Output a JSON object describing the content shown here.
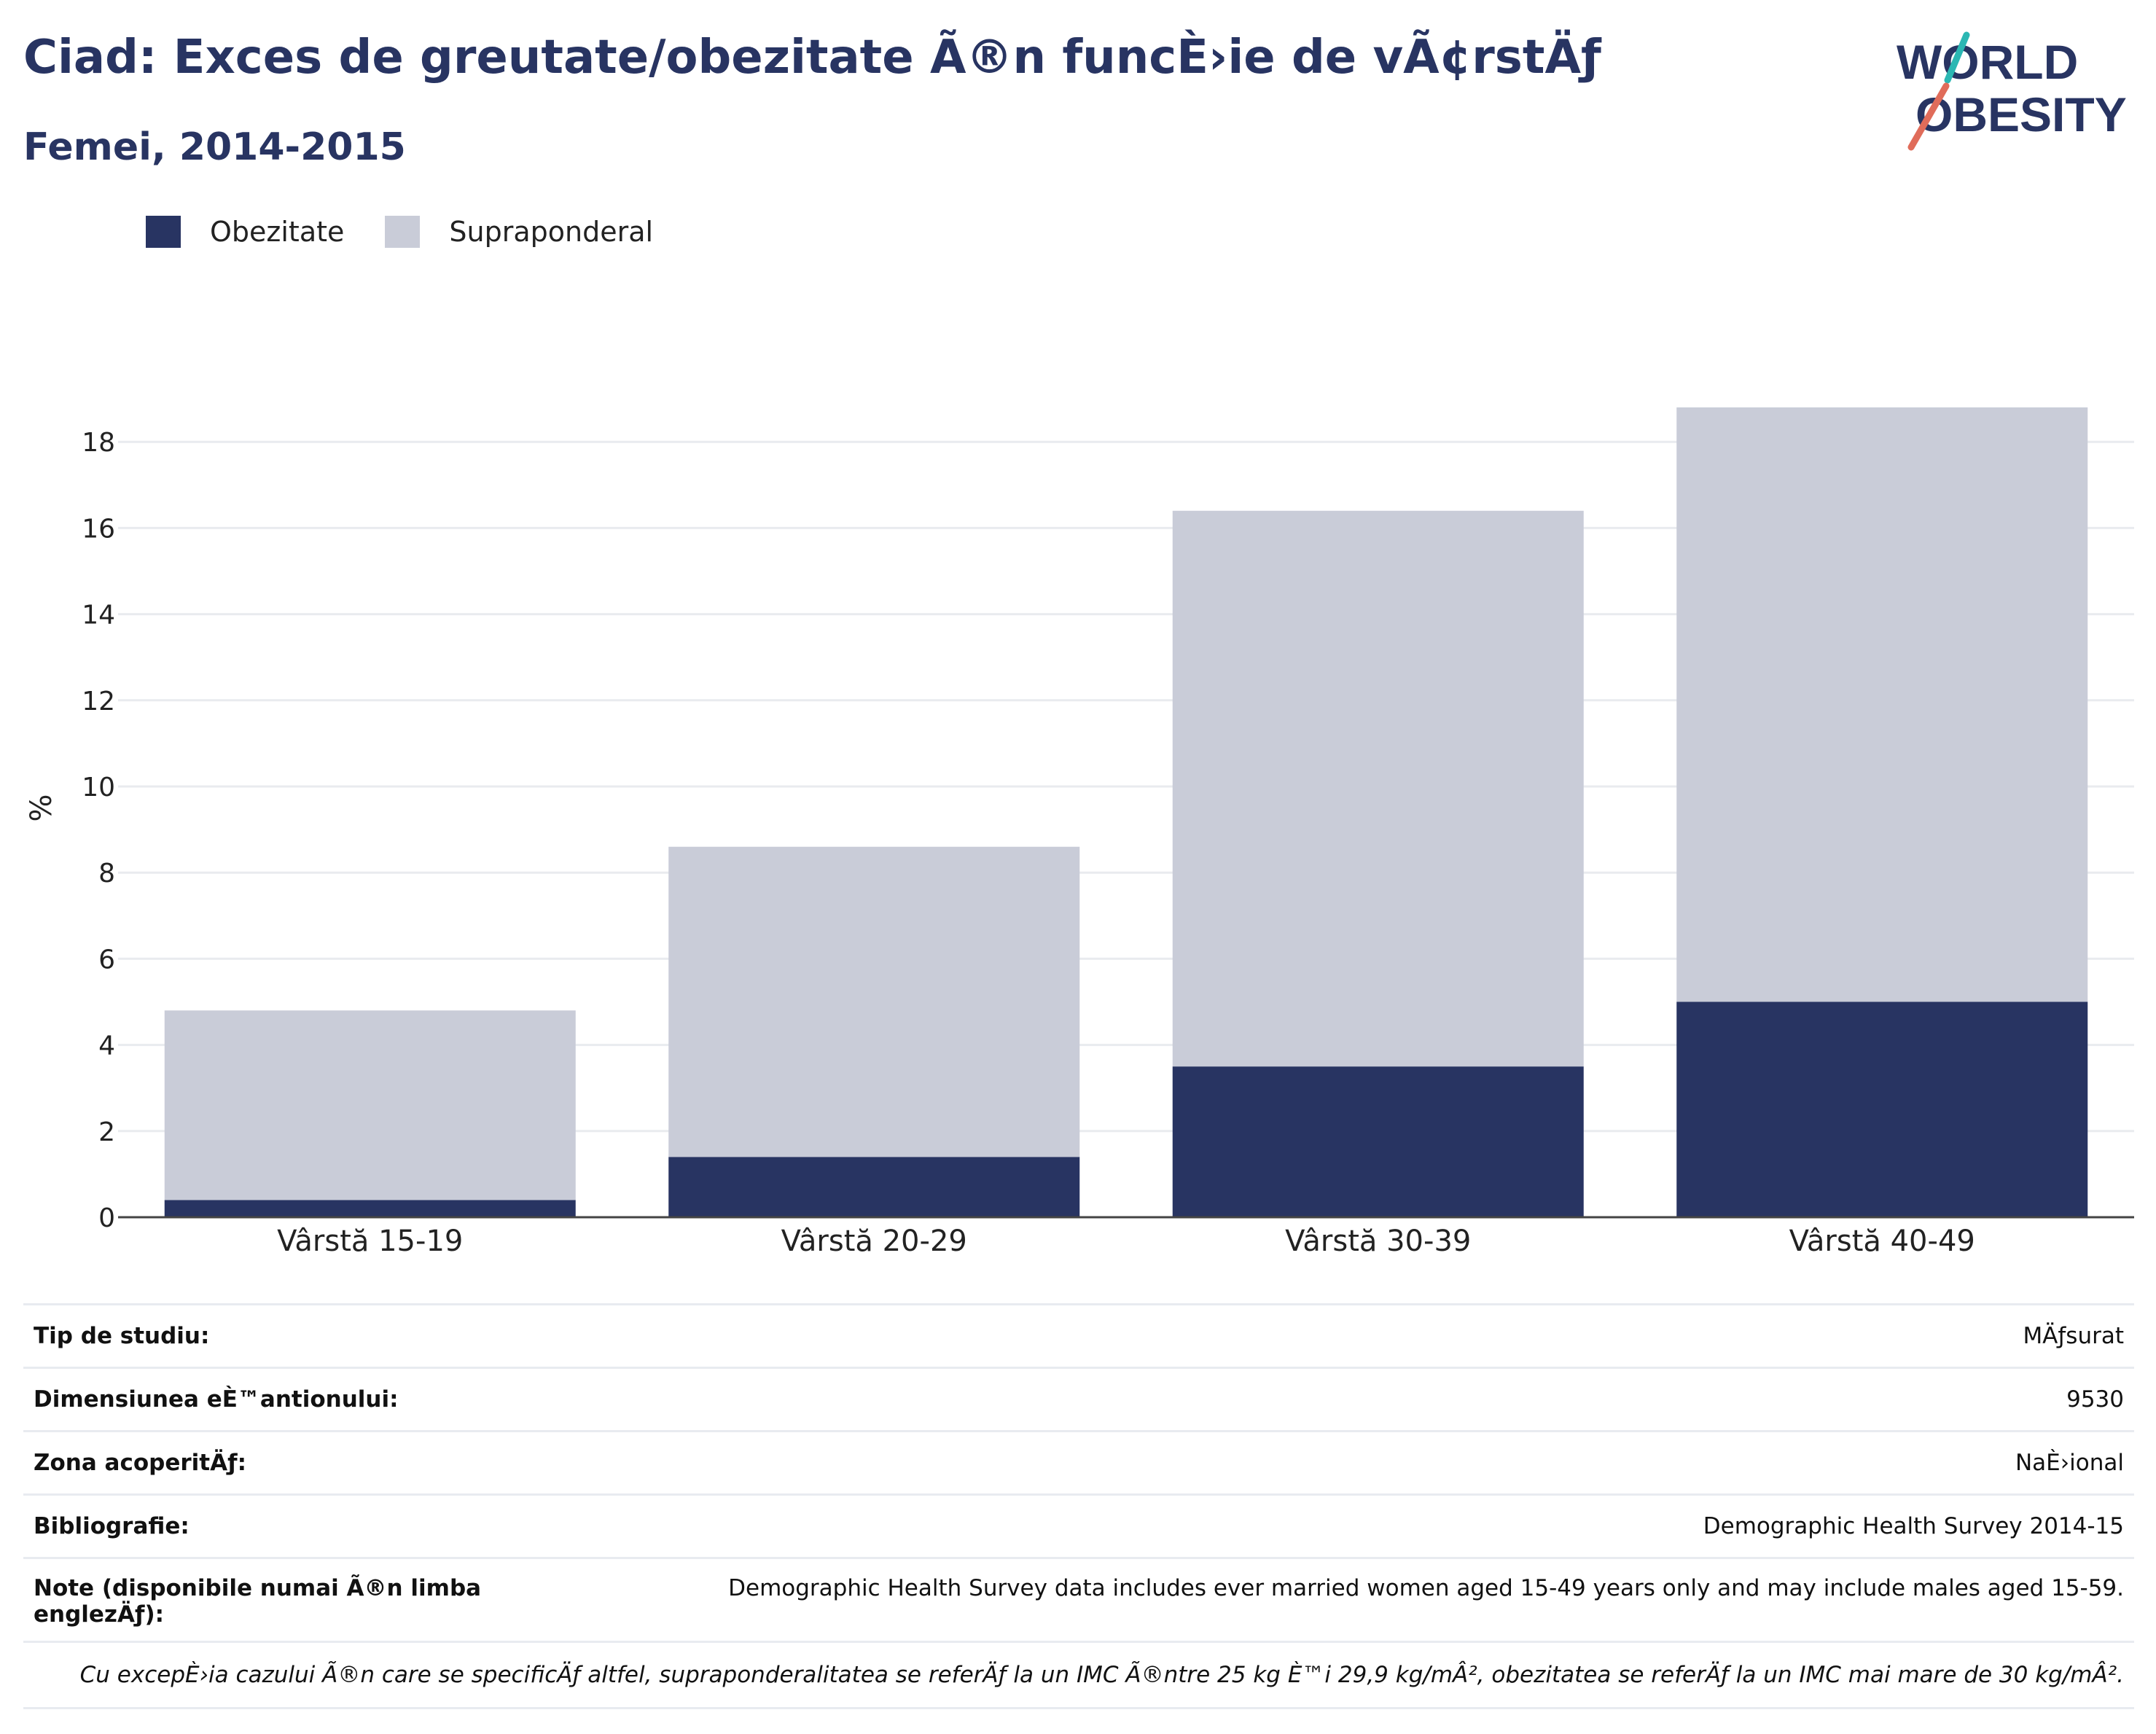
{
  "header": {
    "title": "Ciad: Exces de greutate/obezitate Ã®n funcÈ›ie de vÃ¢rstÄƒ",
    "subtitle": "Femei, 2014-2015"
  },
  "logo": {
    "line1": "WORLD",
    "line2": "OBESITY"
  },
  "colors": {
    "obesity": "#283462",
    "overweight": "#c9ccd8",
    "text": "#283462",
    "accent_teal": "#2bb7b3",
    "accent_red": "#e06c5a"
  },
  "chart_data": {
    "type": "bar",
    "stacked": true,
    "categories": [
      "Vârstă 15-19",
      "Vârstă 20-29",
      "Vârstă 30-39",
      "Vârstă 40-49"
    ],
    "series": [
      {
        "name": "Obezitate",
        "values": [
          0.4,
          1.4,
          3.5,
          5.0
        ]
      },
      {
        "name": "Supraponderal",
        "values": [
          4.4,
          7.2,
          12.9,
          13.8
        ]
      }
    ],
    "totals": [
      4.8,
      8.6,
      16.4,
      18.8
    ],
    "ylabel": "%",
    "ylim": [
      0,
      19
    ],
    "yticks": [
      0,
      2,
      4,
      6,
      8,
      10,
      12,
      14,
      16,
      18
    ],
    "grid": true,
    "legend_position": "top-left"
  },
  "info": {
    "rows": [
      {
        "key": "Tip de studiu:",
        "value": "MÄƒsurat"
      },
      {
        "key": "Dimensiunea eÈ™antionului:",
        "value": "9530"
      },
      {
        "key": "Zona acoperitÄƒ:",
        "value": "NaÈ›ional"
      },
      {
        "key": "Bibliografie:",
        "value": "Demographic Health Survey 2014-15"
      },
      {
        "key": "Note (disponibile numai Ã®n limba englezÄƒ):",
        "value": "Demographic Health Survey data includes ever married women aged 15-49 years only and may include males aged 15-59."
      }
    ],
    "footnote": "Cu excepÈ›ia cazului Ã®n care se specificÄƒ altfel, supraponderalitatea se referÄƒ la un IMC Ã®ntre 25 kg È™i 29,9 kg/mÂ², obezitatea se referÄƒ la un IMC mai mare de 30 kg/mÂ²."
  }
}
